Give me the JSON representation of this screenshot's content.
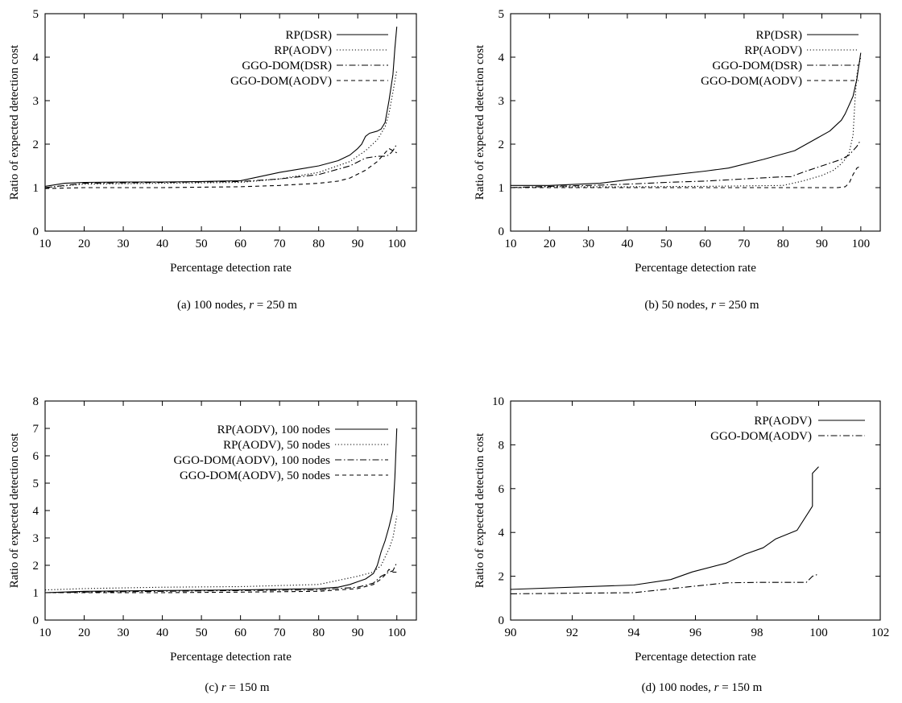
{
  "chart_data": [
    {
      "type": "line",
      "caption": {
        "prefix": "(a) 100 nodes, ",
        "var": "r",
        "suffix": " = 250 m"
      },
      "xlabel": "Percentage detection rate",
      "ylabel": "Ratio of expected detection cost",
      "xlim": [
        10,
        105
      ],
      "ylim": [
        0,
        5
      ],
      "xticks": [
        10,
        20,
        30,
        40,
        50,
        60,
        70,
        80,
        90,
        100
      ],
      "yticks": [
        0,
        1,
        2,
        3,
        4,
        5
      ],
      "grid": false,
      "legend_position": "top-right",
      "series": [
        {
          "name": "RP(DSR)",
          "style": "solid",
          "x": [
            10,
            15,
            20,
            30,
            40,
            50,
            60,
            70,
            80,
            85,
            88,
            90,
            91,
            92,
            93,
            95,
            96,
            97,
            98,
            99,
            99.5,
            100
          ],
          "y": [
            1.03,
            1.1,
            1.12,
            1.13,
            1.13,
            1.14,
            1.16,
            1.35,
            1.5,
            1.62,
            1.75,
            1.9,
            2.0,
            2.18,
            2.25,
            2.3,
            2.35,
            2.5,
            3.0,
            3.6,
            4.2,
            4.7
          ]
        },
        {
          "name": "RP(AODV)",
          "style": "dotted",
          "x": [
            10,
            20,
            40,
            60,
            70,
            80,
            88,
            92,
            95,
            97,
            98,
            99,
            100
          ],
          "y": [
            1.0,
            1.08,
            1.1,
            1.12,
            1.2,
            1.35,
            1.6,
            1.85,
            2.1,
            2.4,
            2.7,
            3.2,
            3.7
          ]
        },
        {
          "name": "GGO-DOM(DSR)",
          "style": "dashdot",
          "x": [
            10,
            20,
            40,
            60,
            70,
            80,
            88,
            92,
            95,
            97,
            98,
            99,
            100
          ],
          "y": [
            1.0,
            1.1,
            1.12,
            1.14,
            1.2,
            1.3,
            1.5,
            1.68,
            1.72,
            1.72,
            1.75,
            1.85,
            2.0
          ]
        },
        {
          "name": "GGO-DOM(AODV)",
          "style": "dashed",
          "x": [
            10,
            20,
            40,
            60,
            70,
            80,
            85,
            88,
            92,
            95,
            97,
            98,
            99,
            100
          ],
          "y": [
            0.98,
            1.0,
            1.0,
            1.02,
            1.05,
            1.1,
            1.15,
            1.22,
            1.4,
            1.6,
            1.8,
            1.9,
            1.85,
            1.8
          ]
        }
      ]
    },
    {
      "type": "line",
      "caption": {
        "prefix": "(b) 50 nodes, ",
        "var": "r",
        "suffix": " = 250 m"
      },
      "xlabel": "Percentage detection rate",
      "ylabel": "Ratio of expected detection cost",
      "xlim": [
        10,
        105
      ],
      "ylim": [
        0,
        5
      ],
      "xticks": [
        10,
        20,
        30,
        40,
        50,
        60,
        70,
        80,
        90,
        100
      ],
      "yticks": [
        0,
        1,
        2,
        3,
        4,
        5
      ],
      "grid": false,
      "legend_position": "top-right",
      "series": [
        {
          "name": "RP(DSR)",
          "style": "solid",
          "x": [
            10,
            20,
            33,
            40,
            50,
            60,
            66,
            75,
            83,
            88,
            92,
            95,
            96,
            98,
            99,
            100
          ],
          "y": [
            1.05,
            1.05,
            1.1,
            1.18,
            1.28,
            1.38,
            1.45,
            1.65,
            1.85,
            2.1,
            2.3,
            2.55,
            2.7,
            3.1,
            3.5,
            4.1
          ]
        },
        {
          "name": "RP(AODV)",
          "style": "dotted",
          "x": [
            10,
            20,
            40,
            60,
            80,
            85,
            90,
            93,
            95,
            96,
            97,
            98,
            98.5,
            99,
            100
          ],
          "y": [
            1.0,
            1.02,
            1.02,
            1.03,
            1.05,
            1.15,
            1.28,
            1.4,
            1.55,
            1.65,
            1.8,
            2.2,
            3.0,
            3.6,
            4.0
          ]
        },
        {
          "name": "GGO-DOM(DSR)",
          "style": "dashdot",
          "x": [
            10,
            20,
            30,
            40,
            50,
            60,
            70,
            80,
            82,
            85,
            90,
            95,
            97,
            99,
            100
          ],
          "y": [
            1.0,
            1.03,
            1.05,
            1.08,
            1.12,
            1.15,
            1.2,
            1.25,
            1.25,
            1.35,
            1.5,
            1.65,
            1.75,
            1.95,
            2.1
          ]
        },
        {
          "name": "GGO-DOM(AODV)",
          "style": "dashed",
          "x": [
            10,
            30,
            50,
            70,
            80,
            90,
            94,
            96,
            97,
            98,
            99,
            100
          ],
          "y": [
            1.0,
            1.0,
            1.0,
            1.0,
            1.0,
            1.0,
            1.0,
            1.02,
            1.1,
            1.3,
            1.45,
            1.5
          ]
        }
      ]
    },
    {
      "type": "line",
      "caption": {
        "prefix": "(c) ",
        "var": "r",
        "suffix": " = 150 m"
      },
      "xlabel": "Percentage detection rate",
      "ylabel": "Ratio of expected detection cost",
      "xlim": [
        10,
        105
      ],
      "ylim": [
        0,
        8
      ],
      "xticks": [
        10,
        20,
        30,
        40,
        50,
        60,
        70,
        80,
        90,
        100
      ],
      "yticks": [
        0,
        1,
        2,
        3,
        4,
        5,
        6,
        7,
        8
      ],
      "grid": false,
      "legend_position": "top-right",
      "series": [
        {
          "name": "RP(AODV), 100 nodes",
          "style": "solid",
          "x": [
            10,
            20,
            40,
            60,
            80,
            85,
            88,
            90,
            92,
            94,
            95,
            96,
            97,
            98,
            99,
            99.5,
            100
          ],
          "y": [
            1.0,
            1.05,
            1.08,
            1.1,
            1.15,
            1.2,
            1.3,
            1.4,
            1.5,
            1.7,
            2.0,
            2.5,
            2.9,
            3.4,
            4.0,
            5.2,
            7.0
          ]
        },
        {
          "name": "RP(AODV), 50 nodes",
          "style": "dotted",
          "x": [
            10,
            20,
            40,
            60,
            80,
            85,
            90,
            94,
            96,
            97,
            98,
            99,
            100
          ],
          "y": [
            1.1,
            1.15,
            1.2,
            1.22,
            1.3,
            1.45,
            1.6,
            1.75,
            2.0,
            2.3,
            2.6,
            3.0,
            3.8
          ]
        },
        {
          "name": "GGO-DOM(AODV), 100 nodes",
          "style": "dashdot",
          "x": [
            10,
            20,
            40,
            60,
            80,
            90,
            94,
            96,
            98,
            99,
            100
          ],
          "y": [
            1.0,
            1.02,
            1.05,
            1.08,
            1.1,
            1.2,
            1.35,
            1.6,
            1.75,
            1.8,
            2.1
          ]
        },
        {
          "name": "GGO-DOM(AODV), 50 nodes",
          "style": "dashed",
          "x": [
            10,
            20,
            40,
            60,
            80,
            90,
            94,
            96,
            97,
            98,
            99,
            100
          ],
          "y": [
            1.0,
            1.0,
            1.0,
            1.02,
            1.05,
            1.15,
            1.3,
            1.5,
            1.65,
            1.85,
            1.75,
            1.75
          ]
        }
      ]
    },
    {
      "type": "line",
      "caption": {
        "prefix": "(d) 100 nodes, ",
        "var": "r",
        "suffix": " = 150 m"
      },
      "xlabel": "Percentage detection rate",
      "ylabel": "Ratio of expected detection cost",
      "xlim": [
        90,
        102
      ],
      "ylim": [
        0,
        10
      ],
      "xticks": [
        90,
        92,
        94,
        96,
        98,
        100,
        102
      ],
      "yticks": [
        0,
        2,
        4,
        6,
        8,
        10
      ],
      "grid": false,
      "legend_position": "top-right",
      "series": [
        {
          "name": "RP(AODV)",
          "style": "solid",
          "x": [
            90,
            94,
            95.2,
            95.9,
            97,
            97.6,
            98.2,
            98.6,
            99.3,
            99.8,
            99.8,
            100
          ],
          "y": [
            1.4,
            1.6,
            1.85,
            2.2,
            2.6,
            3.0,
            3.3,
            3.7,
            4.1,
            5.2,
            6.7,
            7.0
          ]
        },
        {
          "name": "GGO-DOM(AODV)",
          "style": "dashdot",
          "x": [
            90,
            94,
            95,
            96,
            97,
            98,
            99,
            99.6,
            99.8,
            100
          ],
          "y": [
            1.2,
            1.25,
            1.4,
            1.55,
            1.7,
            1.72,
            1.72,
            1.72,
            2.0,
            2.1
          ]
        }
      ]
    }
  ]
}
